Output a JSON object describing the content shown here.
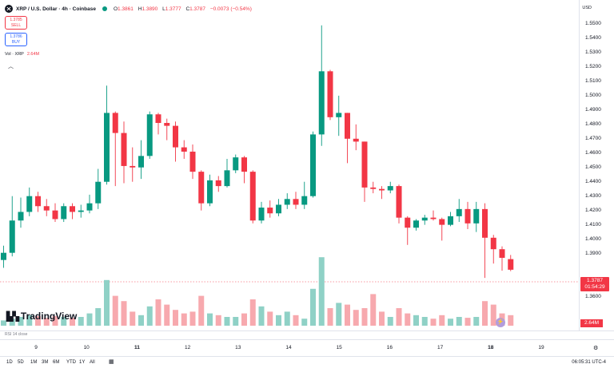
{
  "header": {
    "symbol": "XRP / U.S. Dollar · 4h · Coinbase",
    "ohlc": [
      {
        "k": "O",
        "v": "1.3861"
      },
      {
        "k": "H",
        "v": "1.3890"
      },
      {
        "k": "L",
        "v": "1.3777"
      },
      {
        "k": "C",
        "v": "1.3787"
      }
    ],
    "change": "−0.0073 (−0.54%)",
    "currency": "USD",
    "status_color": "#089981"
  },
  "trade": {
    "sell_price": "1.3785",
    "sell_label": "SELL",
    "buy_price": "1.3786",
    "buy_label": "BUY"
  },
  "volume": {
    "label": "Vol · XRP",
    "value": "2.64M"
  },
  "price_axis": {
    "ticks": [
      "1.5500",
      "1.5400",
      "1.5300",
      "1.5200",
      "1.5100",
      "1.5000",
      "1.4900",
      "1.4800",
      "1.4700",
      "1.4600",
      "1.4500",
      "1.4400",
      "1.4300",
      "1.4200",
      "1.4100",
      "1.4000",
      "1.3900",
      "1.3700",
      "1.3600"
    ],
    "last_price": "1.3787",
    "countdown": "01:54:29",
    "volume_tag": "2.64M"
  },
  "time_axis": {
    "ticks": [
      {
        "label": "9",
        "bold": false
      },
      {
        "label": "10",
        "bold": false
      },
      {
        "label": "11",
        "bold": true
      },
      {
        "label": "12",
        "bold": false
      },
      {
        "label": "13",
        "bold": false
      },
      {
        "label": "14",
        "bold": false
      },
      {
        "label": "15",
        "bold": false
      },
      {
        "label": "16",
        "bold": false
      },
      {
        "label": "17",
        "bold": false
      },
      {
        "label": "18",
        "bold": true
      },
      {
        "label": "19",
        "bold": false
      }
    ]
  },
  "indicator_label": "RSI 14 close",
  "branding": "TradingView",
  "timeframes": [
    "1D",
    "5D",
    "1M",
    "3M",
    "6M",
    "YTD",
    "1Y",
    "All"
  ],
  "clock": "06:05:31 UTC-4",
  "colors": {
    "up": "#089981",
    "down": "#f23645",
    "up_vol": "#8fd1c6",
    "down_vol": "#f7a9ae"
  },
  "chart_data": {
    "type": "candlestick",
    "interval": "4h",
    "price_range": [
      1.355,
      1.556
    ],
    "candles": [
      {
        "o": 1.3855,
        "h": 1.3955,
        "l": 1.38,
        "c": 1.3905,
        "v": 0.6
      },
      {
        "o": 1.3905,
        "h": 1.43,
        "l": 1.388,
        "c": 1.413,
        "v": 0.8
      },
      {
        "o": 1.413,
        "h": 1.429,
        "l": 1.408,
        "c": 1.419,
        "v": 1.0
      },
      {
        "o": 1.419,
        "h": 1.436,
        "l": 1.416,
        "c": 1.43,
        "v": 1.2
      },
      {
        "o": 1.43,
        "h": 1.433,
        "l": 1.419,
        "c": 1.423,
        "v": 1.1
      },
      {
        "o": 1.423,
        "h": 1.428,
        "l": 1.416,
        "c": 1.42,
        "v": 0.9
      },
      {
        "o": 1.42,
        "h": 1.425,
        "l": 1.412,
        "c": 1.414,
        "v": 1.1
      },
      {
        "o": 1.414,
        "h": 1.425,
        "l": 1.412,
        "c": 1.423,
        "v": 1.0
      },
      {
        "o": 1.423,
        "h": 1.425,
        "l": 1.414,
        "c": 1.419,
        "v": 0.9
      },
      {
        "o": 1.419,
        "h": 1.424,
        "l": 1.415,
        "c": 1.42,
        "v": 1.0
      },
      {
        "o": 1.42,
        "h": 1.431,
        "l": 1.418,
        "c": 1.425,
        "v": 1.4
      },
      {
        "o": 1.425,
        "h": 1.449,
        "l": 1.421,
        "c": 1.44,
        "v": 2.0
      },
      {
        "o": 1.44,
        "h": 1.507,
        "l": 1.438,
        "c": 1.488,
        "v": 5.2
      },
      {
        "o": 1.488,
        "h": 1.489,
        "l": 1.437,
        "c": 1.474,
        "v": 3.4
      },
      {
        "o": 1.474,
        "h": 1.482,
        "l": 1.439,
        "c": 1.451,
        "v": 2.8
      },
      {
        "o": 1.451,
        "h": 1.464,
        "l": 1.44,
        "c": 1.45,
        "v": 1.6
      },
      {
        "o": 1.45,
        "h": 1.469,
        "l": 1.442,
        "c": 1.458,
        "v": 1.2
      },
      {
        "o": 1.458,
        "h": 1.489,
        "l": 1.456,
        "c": 1.487,
        "v": 2.2
      },
      {
        "o": 1.487,
        "h": 1.488,
        "l": 1.473,
        "c": 1.481,
        "v": 3.0
      },
      {
        "o": 1.481,
        "h": 1.484,
        "l": 1.469,
        "c": 1.479,
        "v": 2.4
      },
      {
        "o": 1.479,
        "h": 1.482,
        "l": 1.454,
        "c": 1.464,
        "v": 1.8
      },
      {
        "o": 1.464,
        "h": 1.469,
        "l": 1.456,
        "c": 1.461,
        "v": 1.4
      },
      {
        "o": 1.461,
        "h": 1.466,
        "l": 1.442,
        "c": 1.447,
        "v": 1.6
      },
      {
        "o": 1.447,
        "h": 1.448,
        "l": 1.42,
        "c": 1.425,
        "v": 3.4
      },
      {
        "o": 1.425,
        "h": 1.445,
        "l": 1.423,
        "c": 1.441,
        "v": 1.4
      },
      {
        "o": 1.441,
        "h": 1.444,
        "l": 1.433,
        "c": 1.437,
        "v": 1.2
      },
      {
        "o": 1.437,
        "h": 1.456,
        "l": 1.436,
        "c": 1.448,
        "v": 1.0
      },
      {
        "o": 1.448,
        "h": 1.459,
        "l": 1.446,
        "c": 1.457,
        "v": 1.0
      },
      {
        "o": 1.457,
        "h": 1.458,
        "l": 1.439,
        "c": 1.447,
        "v": 1.4
      },
      {
        "o": 1.447,
        "h": 1.448,
        "l": 1.411,
        "c": 1.413,
        "v": 3.0
      },
      {
        "o": 1.413,
        "h": 1.426,
        "l": 1.411,
        "c": 1.422,
        "v": 2.2
      },
      {
        "o": 1.422,
        "h": 1.427,
        "l": 1.415,
        "c": 1.418,
        "v": 1.6
      },
      {
        "o": 1.418,
        "h": 1.428,
        "l": 1.416,
        "c": 1.424,
        "v": 1.2
      },
      {
        "o": 1.424,
        "h": 1.432,
        "l": 1.421,
        "c": 1.428,
        "v": 1.6
      },
      {
        "o": 1.428,
        "h": 1.433,
        "l": 1.421,
        "c": 1.424,
        "v": 1.2
      },
      {
        "o": 1.424,
        "h": 1.44,
        "l": 1.421,
        "c": 1.43,
        "v": 0.8
      },
      {
        "o": 1.43,
        "h": 1.475,
        "l": 1.429,
        "c": 1.473,
        "v": 4.2
      },
      {
        "o": 1.473,
        "h": 1.549,
        "l": 1.465,
        "c": 1.517,
        "v": 7.8
      },
      {
        "o": 1.517,
        "h": 1.518,
        "l": 1.483,
        "c": 1.485,
        "v": 2.0
      },
      {
        "o": 1.485,
        "h": 1.5,
        "l": 1.472,
        "c": 1.488,
        "v": 2.6
      },
      {
        "o": 1.488,
        "h": 1.488,
        "l": 1.453,
        "c": 1.47,
        "v": 2.4
      },
      {
        "o": 1.47,
        "h": 1.48,
        "l": 1.462,
        "c": 1.468,
        "v": 1.8
      },
      {
        "o": 1.468,
        "h": 1.468,
        "l": 1.426,
        "c": 1.436,
        "v": 2.0
      },
      {
        "o": 1.436,
        "h": 1.44,
        "l": 1.432,
        "c": 1.435,
        "v": 3.6
      },
      {
        "o": 1.435,
        "h": 1.437,
        "l": 1.428,
        "c": 1.434,
        "v": 1.6
      },
      {
        "o": 1.434,
        "h": 1.44,
        "l": 1.432,
        "c": 1.437,
        "v": 1.0
      },
      {
        "o": 1.437,
        "h": 1.438,
        "l": 1.411,
        "c": 1.415,
        "v": 2.0
      },
      {
        "o": 1.415,
        "h": 1.416,
        "l": 1.396,
        "c": 1.408,
        "v": 1.4
      },
      {
        "o": 1.408,
        "h": 1.414,
        "l": 1.406,
        "c": 1.413,
        "v": 1.2
      },
      {
        "o": 1.413,
        "h": 1.417,
        "l": 1.41,
        "c": 1.415,
        "v": 1.0
      },
      {
        "o": 1.415,
        "h": 1.42,
        "l": 1.413,
        "c": 1.414,
        "v": 0.8
      },
      {
        "o": 1.414,
        "h": 1.415,
        "l": 1.399,
        "c": 1.41,
        "v": 1.2
      },
      {
        "o": 1.41,
        "h": 1.419,
        "l": 1.409,
        "c": 1.416,
        "v": 0.8
      },
      {
        "o": 1.416,
        "h": 1.428,
        "l": 1.412,
        "c": 1.421,
        "v": 1.0
      },
      {
        "o": 1.421,
        "h": 1.426,
        "l": 1.407,
        "c": 1.411,
        "v": 0.9
      },
      {
        "o": 1.411,
        "h": 1.426,
        "l": 1.405,
        "c": 1.421,
        "v": 1.0
      },
      {
        "o": 1.421,
        "h": 1.425,
        "l": 1.373,
        "c": 1.401,
        "v": 2.8
      },
      {
        "o": 1.401,
        "h": 1.403,
        "l": 1.383,
        "c": 1.393,
        "v": 2.4
      },
      {
        "o": 1.393,
        "h": 1.395,
        "l": 1.378,
        "c": 1.387,
        "v": 1.4
      },
      {
        "o": 1.3861,
        "h": 1.389,
        "l": 1.3777,
        "c": 1.3787,
        "v": 1.2
      }
    ]
  }
}
